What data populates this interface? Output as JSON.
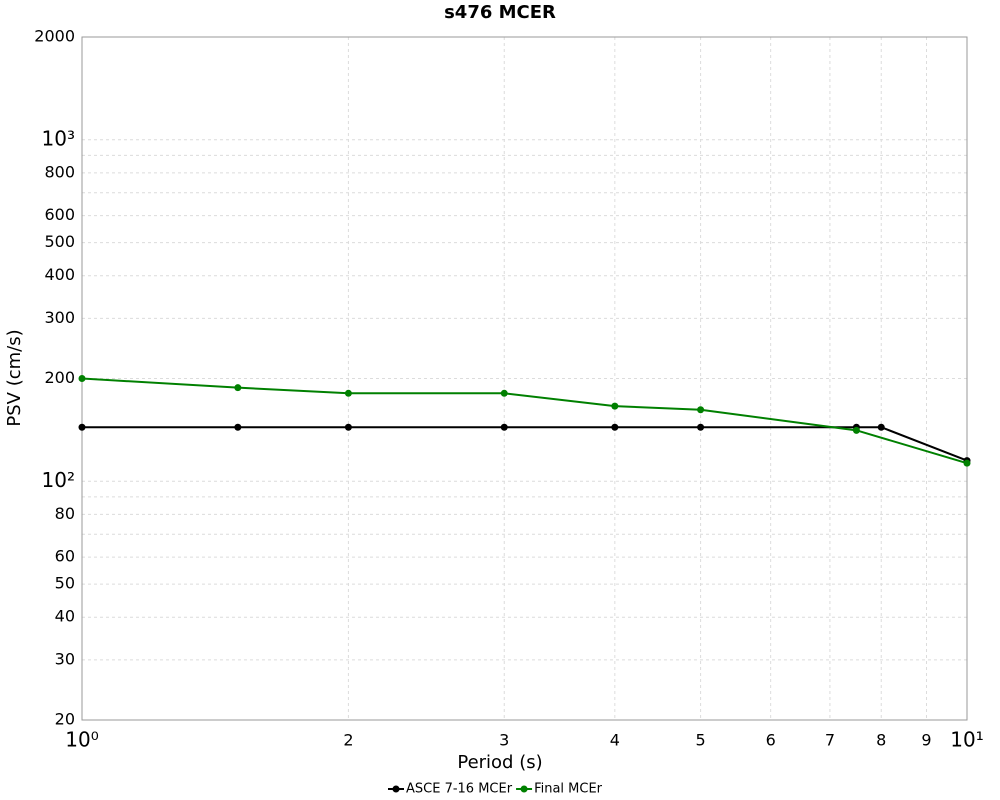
{
  "chart_data": {
    "type": "line",
    "title": "s476 MCER",
    "xlabel": "Period (s)",
    "ylabel": "PSV (cm/s)",
    "xscale": "log",
    "yscale": "log",
    "grid": true,
    "xlim": [
      1,
      10
    ],
    "ylim": [
      20,
      2000
    ],
    "xticks": [
      {
        "value": 1,
        "label": "10⁰"
      },
      2,
      3,
      4,
      5,
      6,
      7,
      8,
      9,
      {
        "value": 10,
        "label": "10¹"
      }
    ],
    "yticks": [
      20,
      30,
      40,
      50,
      60,
      80,
      {
        "value": 100,
        "label": "10²"
      },
      200,
      300,
      400,
      500,
      600,
      800,
      {
        "value": 1000,
        "label": "10³"
      },
      2000
    ],
    "ygrid_minor": [
      70,
      90,
      700,
      900
    ],
    "legend": "bottom",
    "series": [
      {
        "name": "ASCE 7-16 MCEr",
        "color": "#000000",
        "x": [
          1,
          1.5,
          2,
          3,
          4,
          5,
          7.5,
          8,
          10
        ],
        "values": [
          144,
          144,
          144,
          144,
          144,
          144,
          144,
          144,
          115
        ]
      },
      {
        "name": "Final MCEr",
        "color": "#008000",
        "x": [
          1,
          1.5,
          2,
          3,
          4,
          5,
          7.5,
          10
        ],
        "values": [
          200,
          188,
          181,
          181,
          166,
          162,
          141,
          113
        ]
      }
    ]
  }
}
